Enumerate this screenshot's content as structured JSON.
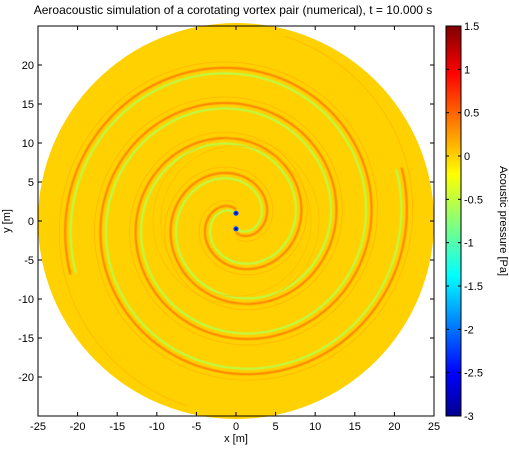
{
  "chart_data": {
    "type": "heatmap",
    "title": "Aeroacoustic simulation of a corotating vortex pair (numerical), t =  10.000 s",
    "xlabel": "x [m]",
    "ylabel": "y [m]",
    "xlim": [
      -25,
      25
    ],
    "ylim": [
      -25,
      25
    ],
    "xticks": [
      -25,
      -20,
      -15,
      -10,
      -5,
      0,
      5,
      10,
      15,
      20,
      25
    ],
    "yticks": [
      -20,
      -15,
      -10,
      -5,
      0,
      5,
      10,
      15,
      20
    ],
    "domain_radius": 25,
    "background_pressure": 0,
    "vortex_centers": [
      [
        0,
        1
      ],
      [
        0,
        -1
      ]
    ],
    "spiral_arms": 2,
    "colorbar": {
      "label": "Acoustic pressure [Pa]",
      "min": -3,
      "max": 1.5,
      "ticks": [
        1.5,
        1,
        0.5,
        0,
        -0.5,
        -1,
        -1.5,
        -2,
        -2.5,
        -3
      ],
      "colormap": "jet",
      "colormap_stops": [
        "#00008f",
        "#0000ff",
        "#00ffff",
        "#ffff00",
        "#ff0000",
        "#800000"
      ]
    }
  }
}
